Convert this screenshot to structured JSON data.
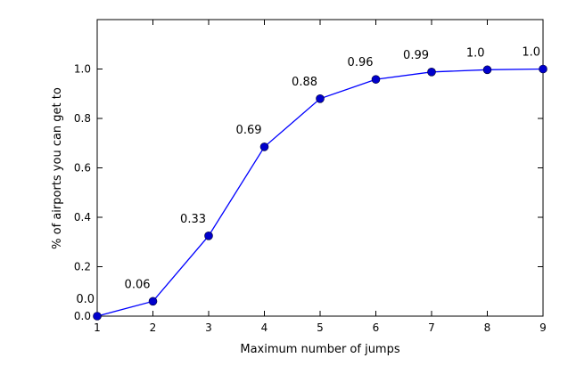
{
  "chart_data": {
    "type": "line",
    "title": "",
    "xlabel": "Maximum number of jumps",
    "ylabel": "% of airports you can get to",
    "xlim": [
      1,
      9
    ],
    "ylim": [
      0.0,
      1.2
    ],
    "x_ticks": [
      1,
      2,
      3,
      4,
      5,
      6,
      7,
      8,
      9
    ],
    "y_ticks": [
      0.0,
      0.2,
      0.4,
      0.6,
      0.8,
      1.0
    ],
    "y_tick_labels": [
      "0.0",
      "0.2",
      "0.4",
      "0.6",
      "0.8",
      "1.0"
    ],
    "grid": false,
    "series": [
      {
        "x": [
          1,
          2,
          3,
          4,
          5,
          6,
          7,
          8,
          9
        ],
        "y": [
          0.0,
          0.06,
          0.325,
          0.685,
          0.88,
          0.958,
          0.988,
          0.997,
          1.0
        ],
        "labels": [
          "0.0",
          "0.06",
          "0.33",
          "0.69",
          "0.88",
          "0.96",
          "0.99",
          "1.0",
          "1.0"
        ],
        "color": "#0000ff",
        "marker_color": "#0000cc"
      }
    ]
  }
}
